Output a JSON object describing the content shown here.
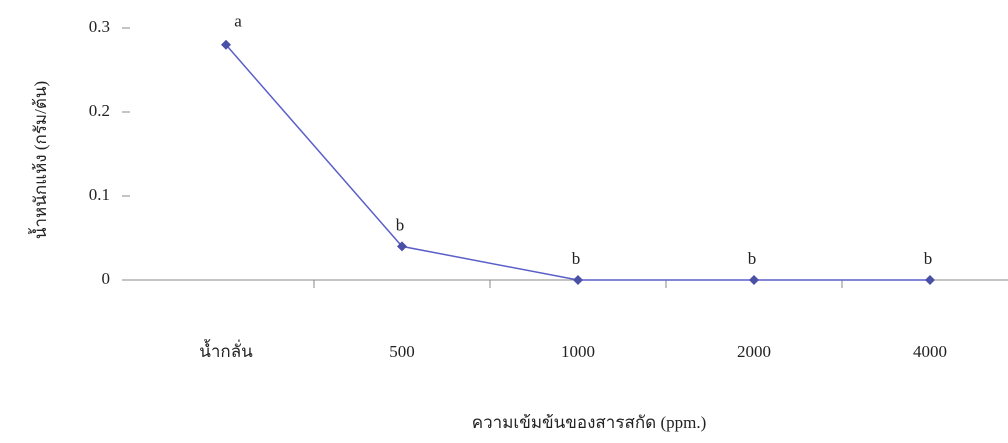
{
  "chart_data": {
    "type": "line",
    "x_label": "ความเข้มข้นของสารสกัด (ppm.)",
    "y_label": "น้ำหนักแห้ง (กรัม/ต้น)",
    "categories": [
      "น้ำกลั่น",
      "500",
      "1000",
      "2000",
      "4000"
    ],
    "series": [
      {
        "name": "น้ำหนักแห้ง",
        "color": "#5a5ec8",
        "values": [
          0.28,
          0.04,
          0,
          0,
          0
        ],
        "letters": [
          "a",
          "b",
          "b",
          "b",
          "b"
        ]
      }
    ],
    "ylim": [
      0,
      0.3
    ],
    "yticks": [
      0,
      0.1,
      0.2,
      0.3
    ],
    "grid": false,
    "legend": false
  }
}
